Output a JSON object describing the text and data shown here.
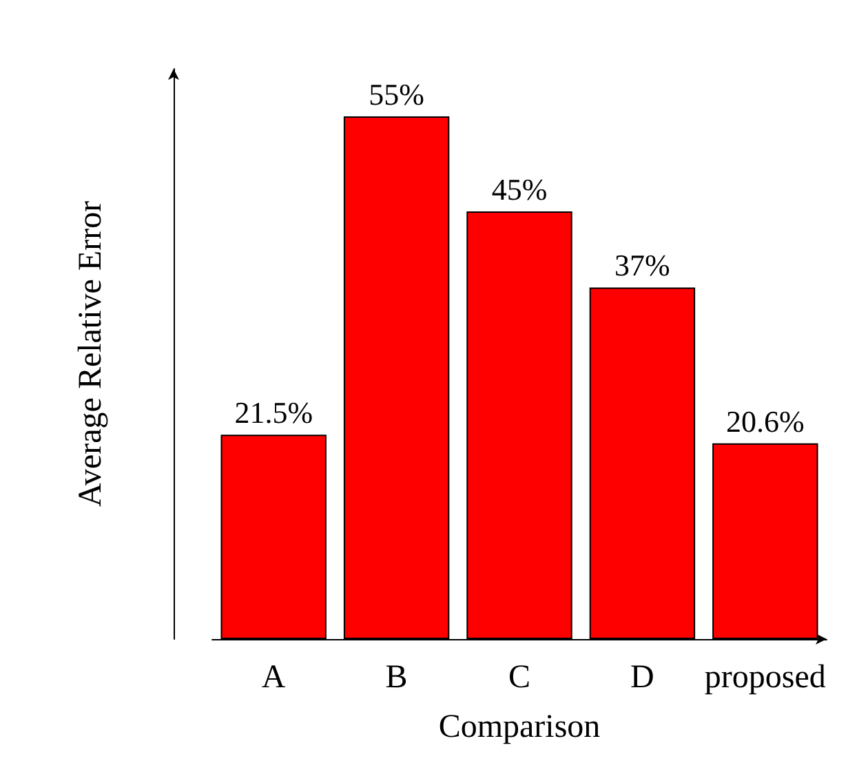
{
  "chart_data": {
    "type": "bar",
    "xlabel": "Comparison",
    "ylabel": "Average Relative Error",
    "categories": [
      "A",
      "B",
      "C",
      "D",
      "proposed"
    ],
    "values": [
      21.5,
      55,
      45,
      37,
      20.6
    ],
    "value_labels": [
      "21.5%",
      "55%",
      "45%",
      "37%",
      "20.6%"
    ],
    "color": "#ff0000"
  }
}
